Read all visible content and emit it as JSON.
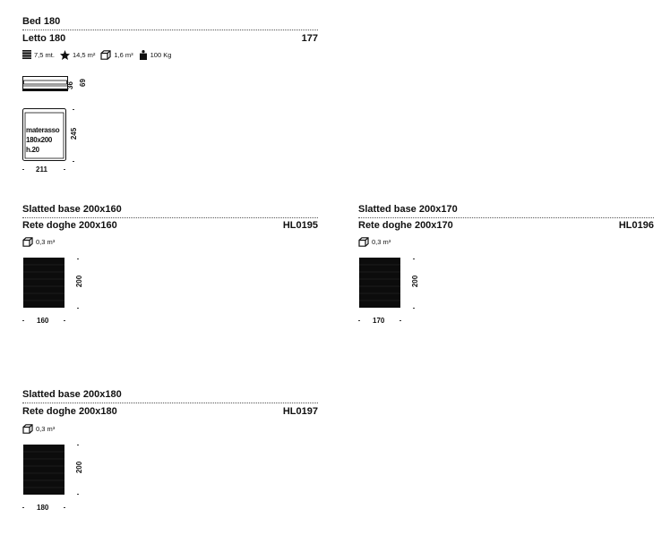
{
  "bed": {
    "title_en": "Bed 180",
    "title_it": "Letto 180",
    "code": "177",
    "specs": {
      "length": "7,5 mt.",
      "area": "14,5 m²",
      "volume": "1,6 m³",
      "weight": "100 Kg"
    },
    "side_dims": [
      "36",
      "69"
    ],
    "mattress_label": [
      "materasso",
      "180x200",
      "h.20"
    ],
    "depth": "245",
    "width": "211"
  },
  "bases": [
    {
      "title_en": "Slatted base 200x160",
      "title_it": "Rete doghe 200x160",
      "code": "HL0195",
      "volume": "0,3 m³",
      "depth": "200",
      "width": "160"
    },
    {
      "title_en": "Slatted base 200x170",
      "title_it": "Rete doghe 200x170",
      "code": "HL0196",
      "volume": "0,3 m³",
      "depth": "200",
      "width": "170"
    },
    {
      "title_en": "Slatted base 200x180",
      "title_it": "Rete doghe 200x180",
      "code": "HL0197",
      "volume": "0,3 m³",
      "depth": "200",
      "width": "180"
    }
  ]
}
